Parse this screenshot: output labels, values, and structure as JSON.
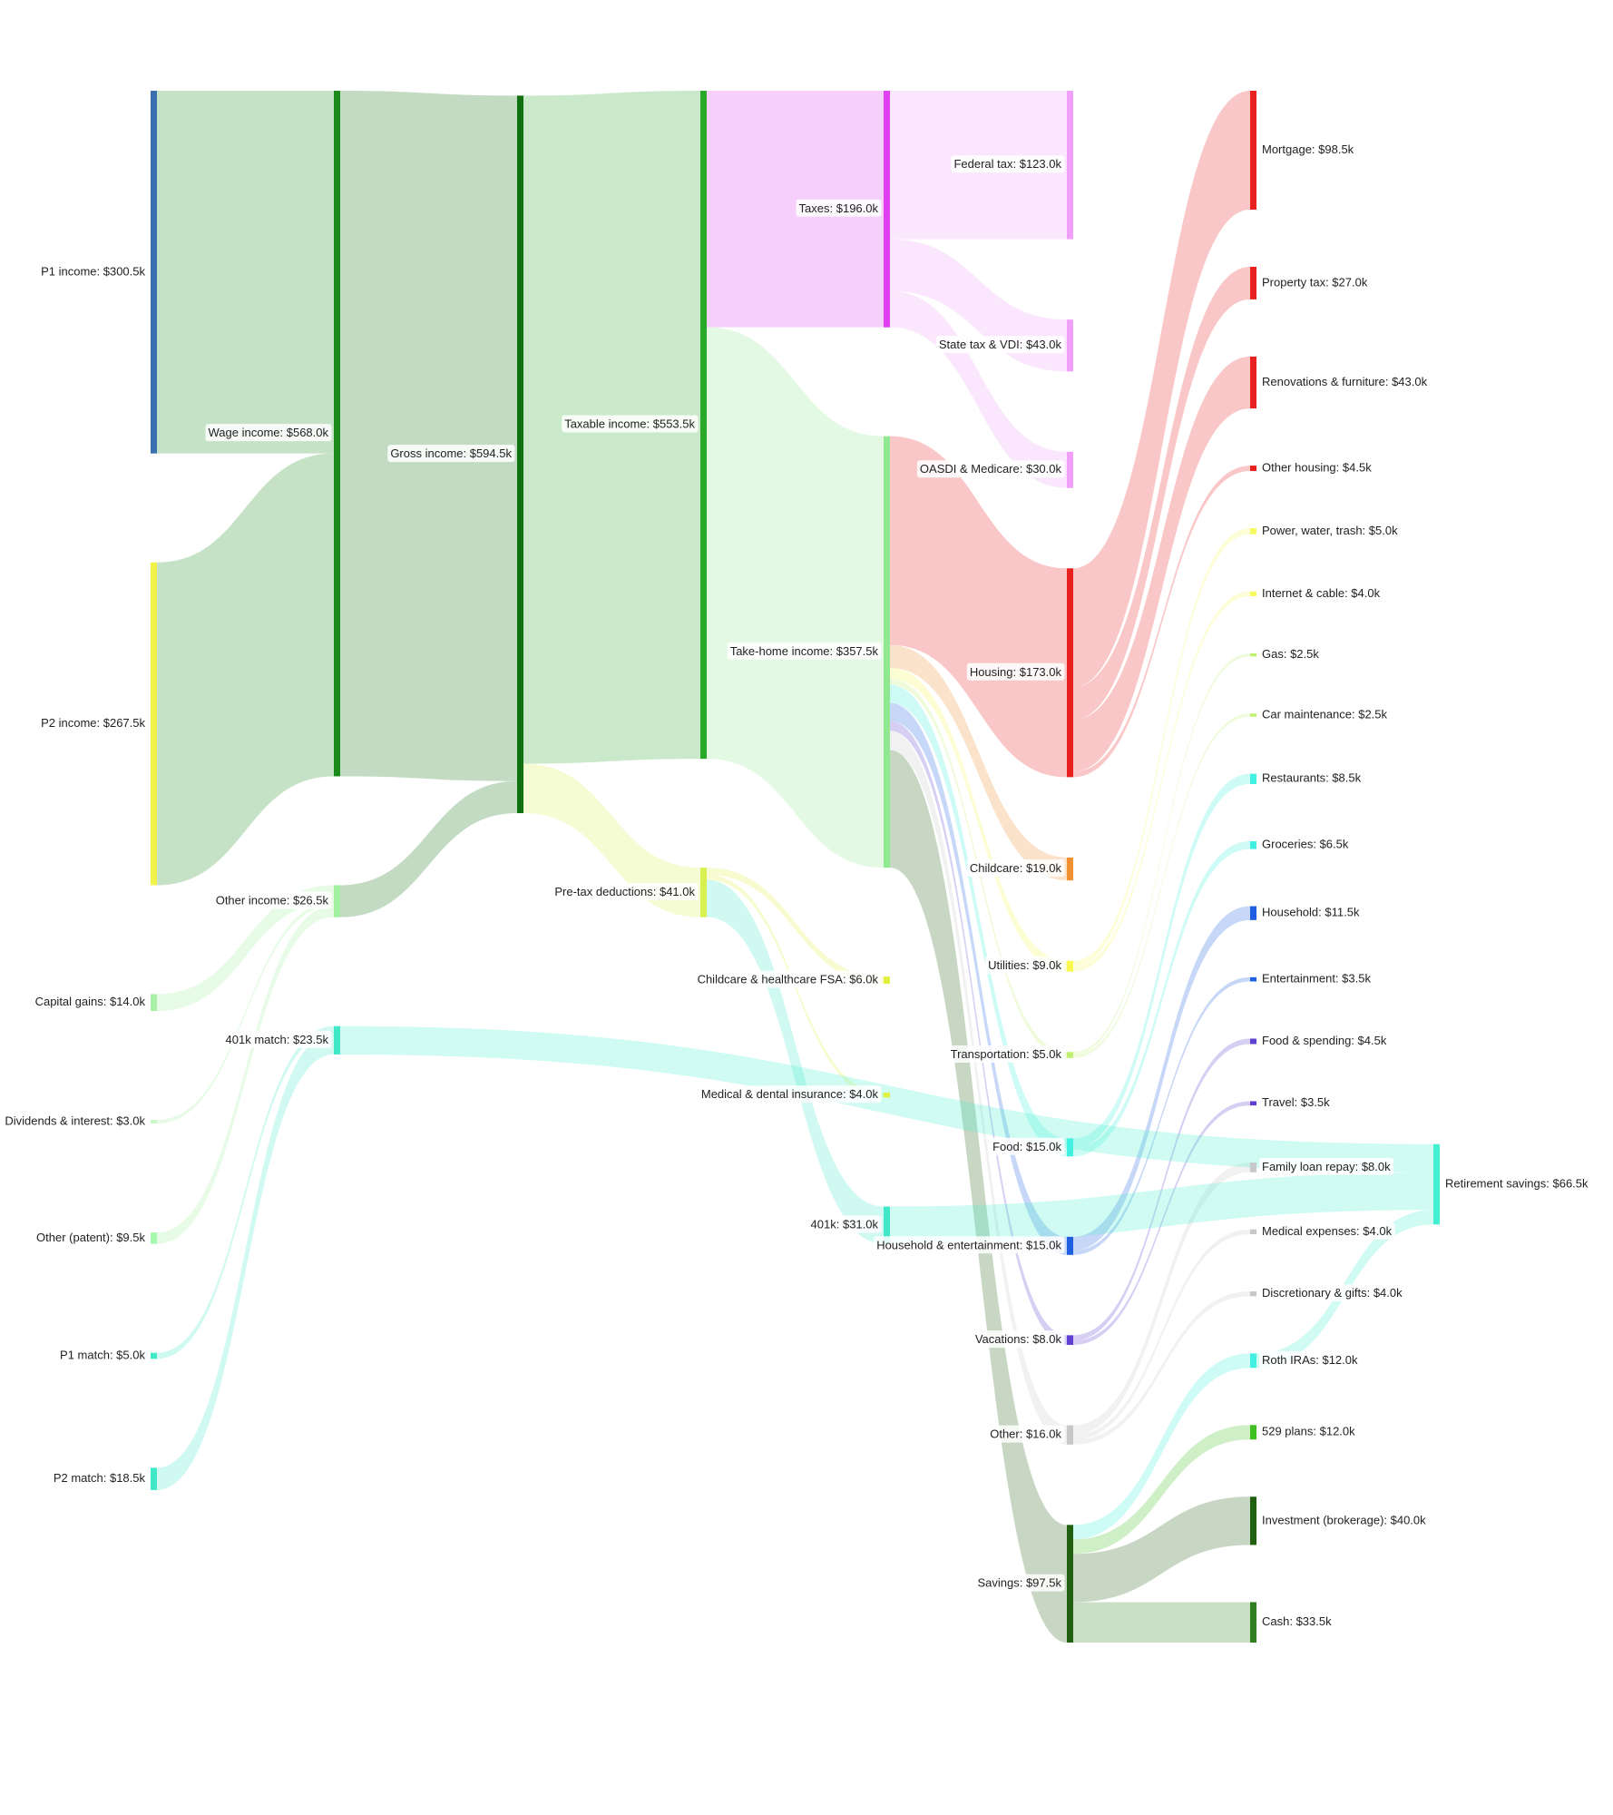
{
  "chart_data": {
    "type": "sankey",
    "nodes": [
      {
        "label": "P1 income: $300.5k",
        "value": 300.5,
        "color": "#3a6fb0"
      },
      {
        "label": "P2 income: $267.5k",
        "value": 267.5,
        "color": "#f2f24a"
      },
      {
        "label": "Capital gains: $14.0k",
        "value": 14,
        "color": "#a8f0a8"
      },
      {
        "label": "Dividends & interest: $3.0k",
        "value": 3,
        "color": "#c8f8c8"
      },
      {
        "label": "Other (patent): $9.5k",
        "value": 9.5,
        "color": "#a8f8b0"
      },
      {
        "label": "P1 match: $5.0k",
        "value": 5,
        "color": "#40e8c8"
      },
      {
        "label": "P2 match: $18.5k",
        "value": 18.5,
        "color": "#40e8c8"
      },
      {
        "label": "Wage income: $568.0k",
        "value": 568,
        "color": "#1a8a1a"
      },
      {
        "label": "Other income: $26.5k",
        "value": 26.5,
        "color": "#a0f0a0"
      },
      {
        "label": "401k match: $23.5k",
        "value": 23.5,
        "color": "#40e8c8"
      },
      {
        "label": "Gross income: $594.5k",
        "value": 594.5,
        "color": "#107010"
      },
      {
        "label": "Taxable income: $553.5k",
        "value": 553.5,
        "color": "#2aa82a"
      },
      {
        "label": "Pre-tax deductions: $41.0k",
        "value": 41,
        "color": "#d8f050"
      },
      {
        "label": "Taxes: $196.0k",
        "value": 196,
        "color": "#e040f0"
      },
      {
        "label": "Take-home income: $357.5k",
        "value": 357.5,
        "color": "#90e890"
      },
      {
        "label": "Childcare & healthcare FSA: $6.0k",
        "value": 6,
        "color": "#e0f040"
      },
      {
        "label": "Medical & dental insurance: $4.0k",
        "value": 4,
        "color": "#e0f040"
      },
      {
        "label": "401k: $31.0k",
        "value": 31,
        "color": "#40e8c8"
      },
      {
        "label": "Federal tax: $123.0k",
        "value": 123,
        "color": "#f0a0f8"
      },
      {
        "label": "State tax & VDI: $43.0k",
        "value": 43,
        "color": "#f0a0f8"
      },
      {
        "label": "OASDI & Medicare: $30.0k",
        "value": 30,
        "color": "#f0a0f8"
      },
      {
        "label": "Housing: $173.0k",
        "value": 173,
        "color": "#e82020"
      },
      {
        "label": "Childcare: $19.0k",
        "value": 19,
        "color": "#f09030"
      },
      {
        "label": "Utilities: $9.0k",
        "value": 9,
        "color": "#f8f850"
      },
      {
        "label": "Transportation: $5.0k",
        "value": 5,
        "color": "#c0f070"
      },
      {
        "label": "Food: $15.0k",
        "value": 15,
        "color": "#40f0e0"
      },
      {
        "label": "Household & entertainment: $15.0k",
        "value": 15,
        "color": "#2060e0"
      },
      {
        "label": "Vacations: $8.0k",
        "value": 8,
        "color": "#6040d0"
      },
      {
        "label": "Other: $16.0k",
        "value": 16,
        "color": "#c8c8c8"
      },
      {
        "label": "Savings: $97.5k",
        "value": 97.5,
        "color": "#206010"
      },
      {
        "label": "Mortgage: $98.5k",
        "value": 98.5,
        "color": "#e82020"
      },
      {
        "label": "Property tax: $27.0k",
        "value": 27,
        "color": "#e82020"
      },
      {
        "label": "Renovations & furniture: $43.0k",
        "value": 43,
        "color": "#e82020"
      },
      {
        "label": "Other housing: $4.5k",
        "value": 4.5,
        "color": "#e82020"
      },
      {
        "label": "Power, water, trash: $5.0k",
        "value": 5,
        "color": "#f8f860"
      },
      {
        "label": "Internet & cable: $4.0k",
        "value": 4,
        "color": "#f8f860"
      },
      {
        "label": "Gas: $2.5k",
        "value": 2.5,
        "color": "#c0f070"
      },
      {
        "label": "Car maintenance: $2.5k",
        "value": 2.5,
        "color": "#c0f070"
      },
      {
        "label": "Restaurants: $8.5k",
        "value": 8.5,
        "color": "#40f0e0"
      },
      {
        "label": "Groceries: $6.5k",
        "value": 6.5,
        "color": "#40f0e0"
      },
      {
        "label": "Household: $11.5k",
        "value": 11.5,
        "color": "#2060e0"
      },
      {
        "label": "Entertainment: $3.5k",
        "value": 3.5,
        "color": "#2060e0"
      },
      {
        "label": "Food & spending: $4.5k",
        "value": 4.5,
        "color": "#6040d0"
      },
      {
        "label": "Travel: $3.5k",
        "value": 3.5,
        "color": "#6040d0"
      },
      {
        "label": "Family loan repay: $8.0k",
        "value": 8,
        "color": "#c8c8c8"
      },
      {
        "label": "Medical expenses: $4.0k",
        "value": 4,
        "color": "#c8c8c8"
      },
      {
        "label": "Discretionary & gifts: $4.0k",
        "value": 4,
        "color": "#c8c8c8"
      },
      {
        "label": "Roth IRAs: $12.0k",
        "value": 12,
        "color": "#40f0e0"
      },
      {
        "label": "529 plans: $12.0k",
        "value": 12,
        "color": "#40c020"
      },
      {
        "label": "Investment (brokerage): $40.0k",
        "value": 40,
        "color": "#206010"
      },
      {
        "label": "Cash: $33.5k",
        "value": 33.5,
        "color": "#308020"
      },
      {
        "label": "Retirement savings: $66.5k",
        "value": 66.5,
        "color": "#40f0d0"
      }
    ],
    "links": [
      {
        "source": 0,
        "target": 7,
        "value": 300.5
      },
      {
        "source": 1,
        "target": 7,
        "value": 267.5
      },
      {
        "source": 2,
        "target": 8,
        "value": 14
      },
      {
        "source": 3,
        "target": 8,
        "value": 3
      },
      {
        "source": 4,
        "target": 8,
        "value": 9.5
      },
      {
        "source": 5,
        "target": 9,
        "value": 5
      },
      {
        "source": 6,
        "target": 9,
        "value": 18.5
      },
      {
        "source": 7,
        "target": 10,
        "value": 568
      },
      {
        "source": 8,
        "target": 10,
        "value": 26.5
      },
      {
        "source": 10,
        "target": 11,
        "value": 553.5
      },
      {
        "source": 10,
        "target": 12,
        "value": 41
      },
      {
        "source": 11,
        "target": 13,
        "value": 196
      },
      {
        "source": 11,
        "target": 14,
        "value": 357.5
      },
      {
        "source": 12,
        "target": 15,
        "value": 6
      },
      {
        "source": 12,
        "target": 16,
        "value": 4
      },
      {
        "source": 12,
        "target": 17,
        "value": 31
      },
      {
        "source": 13,
        "target": 18,
        "value": 123
      },
      {
        "source": 13,
        "target": 19,
        "value": 43
      },
      {
        "source": 13,
        "target": 20,
        "value": 30
      },
      {
        "source": 14,
        "target": 21,
        "value": 173
      },
      {
        "source": 14,
        "target": 22,
        "value": 19
      },
      {
        "source": 14,
        "target": 23,
        "value": 9
      },
      {
        "source": 14,
        "target": 24,
        "value": 5
      },
      {
        "source": 14,
        "target": 25,
        "value": 15
      },
      {
        "source": 14,
        "target": 26,
        "value": 15
      },
      {
        "source": 14,
        "target": 27,
        "value": 8
      },
      {
        "source": 14,
        "target": 28,
        "value": 16
      },
      {
        "source": 14,
        "target": 29,
        "value": 97.5
      },
      {
        "source": 21,
        "target": 30,
        "value": 98.5
      },
      {
        "source": 21,
        "target": 31,
        "value": 27
      },
      {
        "source": 21,
        "target": 32,
        "value": 43
      },
      {
        "source": 21,
        "target": 33,
        "value": 4.5
      },
      {
        "source": 23,
        "target": 34,
        "value": 5
      },
      {
        "source": 23,
        "target": 35,
        "value": 4
      },
      {
        "source": 24,
        "target": 36,
        "value": 2.5
      },
      {
        "source": 24,
        "target": 37,
        "value": 2.5
      },
      {
        "source": 25,
        "target": 38,
        "value": 8.5
      },
      {
        "source": 25,
        "target": 39,
        "value": 6.5
      },
      {
        "source": 26,
        "target": 40,
        "value": 11.5
      },
      {
        "source": 26,
        "target": 41,
        "value": 3.5
      },
      {
        "source": 27,
        "target": 42,
        "value": 4.5
      },
      {
        "source": 27,
        "target": 43,
        "value": 3.5
      },
      {
        "source": 28,
        "target": 44,
        "value": 8
      },
      {
        "source": 28,
        "target": 45,
        "value": 4
      },
      {
        "source": 28,
        "target": 46,
        "value": 4
      },
      {
        "source": 29,
        "target": 47,
        "value": 12
      },
      {
        "source": 29,
        "target": 48,
        "value": 12
      },
      {
        "source": 29,
        "target": 49,
        "value": 40
      },
      {
        "source": 29,
        "target": 50,
        "value": 33.5
      },
      {
        "source": 9,
        "target": 51,
        "value": 23.5
      },
      {
        "source": 17,
        "target": 51,
        "value": 31
      },
      {
        "source": 47,
        "target": 51,
        "value": 12
      }
    ]
  }
}
